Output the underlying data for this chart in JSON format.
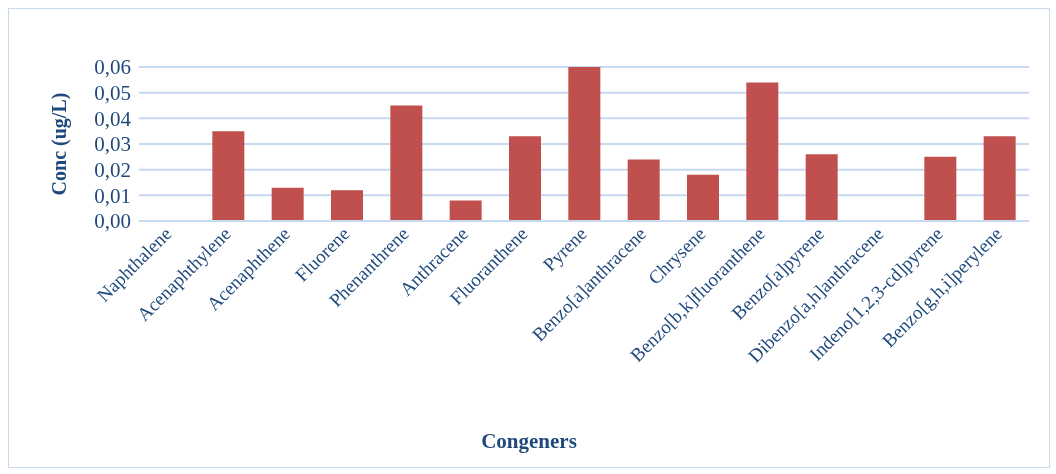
{
  "chart_data": {
    "type": "bar",
    "xlabel": "Congeners",
    "ylabel": "Conc (ug/L)",
    "categories": [
      "Naphthalene",
      "Acenaphthylene",
      "Acenaphthene",
      "Fluorene",
      "Phenanthrene",
      "Anthracene",
      "Fluoranthene",
      "Pyrene",
      "Benzo[a]anthracene",
      "Chrysene",
      "Benzo[b,k]fluoranthene",
      "Benzo[a]pyrene",
      "Dibenzo[a,h]anthracene",
      "Indeno[1,2,3-cd]pyrene",
      "Benzo[g,h,i]perylene"
    ],
    "values": [
      0,
      0.035,
      0.013,
      0.012,
      0.045,
      0.008,
      0.033,
      0.06,
      0.024,
      0.018,
      0.054,
      0.026,
      0,
      0.025,
      0.033
    ],
    "color": "#c0504d",
    "ylim": [
      0,
      0.06
    ],
    "yticks": [
      {
        "value": 0,
        "label": "0,00"
      },
      {
        "value": 0.01,
        "label": "0,01"
      },
      {
        "value": 0.02,
        "label": "0,02"
      },
      {
        "value": 0.03,
        "label": "0,03"
      },
      {
        "value": 0.04,
        "label": "0,04"
      },
      {
        "value": 0.05,
        "label": "0,05"
      },
      {
        "value": 0.06,
        "label": "0,06"
      }
    ],
    "grid": "y"
  }
}
